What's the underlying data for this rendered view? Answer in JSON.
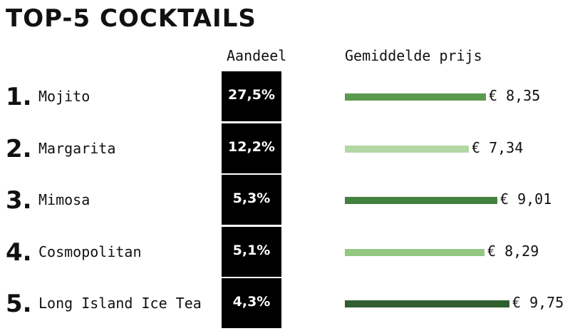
{
  "title": "TOP-5 COCKTAILS",
  "headers": {
    "share": "Aandeel",
    "price": "Gemiddelde prijs"
  },
  "chart_data": {
    "type": "bar",
    "categories": [
      "Mojito",
      "Margarita",
      "Mimosa",
      "Cosmopolitan",
      "Long Island Ice Tea"
    ],
    "ranks": [
      "1.",
      "2.",
      "3.",
      "4.",
      "5."
    ],
    "share_labels": [
      "27,5%",
      "12,2%",
      "5,3%",
      "5,1%",
      "4,3%"
    ],
    "share_values": [
      27.5,
      12.2,
      5.3,
      5.1,
      4.3
    ],
    "price_values": [
      8.35,
      7.34,
      9.01,
      8.29,
      9.75
    ],
    "price_labels": [
      "€ 8,35",
      "€ 7,34",
      "€ 9,01",
      "€ 8,29",
      "€ 9,75"
    ],
    "bar_colors": [
      "#5a9a4e",
      "#b2d8a3",
      "#44803e",
      "#93c781",
      "#2f5e30"
    ]
  }
}
